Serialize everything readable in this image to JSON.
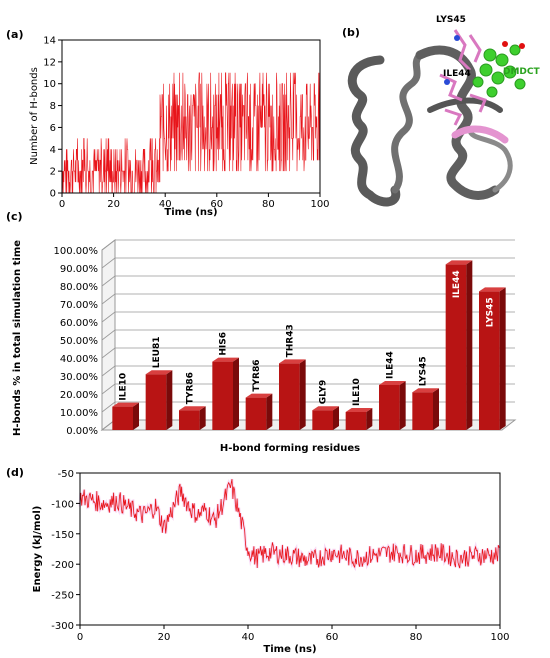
{
  "panels": {
    "a": "(a)",
    "b": "(b)",
    "c": "(c)",
    "d": "(d)"
  },
  "colors": {
    "series_red": "#e8141a",
    "bar_red": "#b81414",
    "bar_side": "#7a0a0a",
    "protein_grey": "#6b6b6b",
    "ligand_green": "#3ecf2e",
    "residue_pink": "#e494d0"
  },
  "structure": {
    "labels": [
      "LYS45",
      "ILE44",
      "DMDCT"
    ]
  },
  "chart_data": [
    {
      "id": "a",
      "type": "line",
      "xlabel": "Time (ns)",
      "ylabel": "Number of H-bonds",
      "xlim": [
        0,
        100
      ],
      "ylim": [
        0,
        14
      ],
      "xticks": [
        0,
        20,
        40,
        60,
        80,
        100
      ],
      "yticks": [
        0,
        2,
        4,
        6,
        8,
        10,
        12,
        14
      ],
      "series": [
        {
          "segments": [
            {
              "x_start": 0,
              "x_end": 38,
              "low": 0,
              "high": 5,
              "typical": 2
            },
            {
              "x_start": 38,
              "x_end": 100,
              "low": 2,
              "high": 11,
              "typical": 6
            }
          ]
        }
      ]
    },
    {
      "id": "c",
      "type": "bar",
      "xlabel": "H-bond forming residues",
      "ylabel": "H-bonds % in total simulation time",
      "ylim": [
        0,
        100
      ],
      "yticks": [
        "0.00%",
        "10.00%",
        "20.00%",
        "30.00%",
        "40.00%",
        "50.00%",
        "60.00%",
        "70.00%",
        "80.00%",
        "90.00%",
        "100.00%"
      ],
      "categories": [
        "ILE10",
        "LEU81",
        "TYR86",
        "HIS6",
        "TYR86",
        "THR43",
        "GLY9",
        "ILE10",
        "ILE44",
        "LYS45",
        "ILE44",
        "LYS45"
      ],
      "values": [
        13,
        31,
        11,
        38,
        18,
        37,
        11,
        10,
        25,
        21,
        92,
        77
      ],
      "grid": true
    },
    {
      "id": "d",
      "type": "line",
      "xlabel": "Time (ns)",
      "ylabel": "Energy (kJ/mol)",
      "xlim": [
        0,
        100
      ],
      "ylim": [
        -300,
        -50
      ],
      "xticks": [
        0,
        20,
        40,
        60,
        80,
        100
      ],
      "yticks": [
        -50,
        -100,
        -150,
        -200,
        -250,
        -300
      ],
      "series": [
        {
          "x": [
            0,
            3,
            6,
            9,
            12,
            15,
            18,
            20,
            22,
            24,
            26,
            28,
            30,
            32,
            34,
            36,
            38,
            40,
            42,
            45,
            50,
            55,
            60,
            65,
            70,
            75,
            80,
            85,
            90,
            95,
            100
          ],
          "y": [
            -90,
            -95,
            -100,
            -95,
            -110,
            -120,
            -105,
            -140,
            -110,
            -80,
            -105,
            -120,
            -110,
            -130,
            -100,
            -70,
            -120,
            -175,
            -190,
            -180,
            -185,
            -195,
            -180,
            -190,
            -185,
            -180,
            -185,
            -180,
            -190,
            -185,
            -185
          ]
        }
      ]
    }
  ]
}
